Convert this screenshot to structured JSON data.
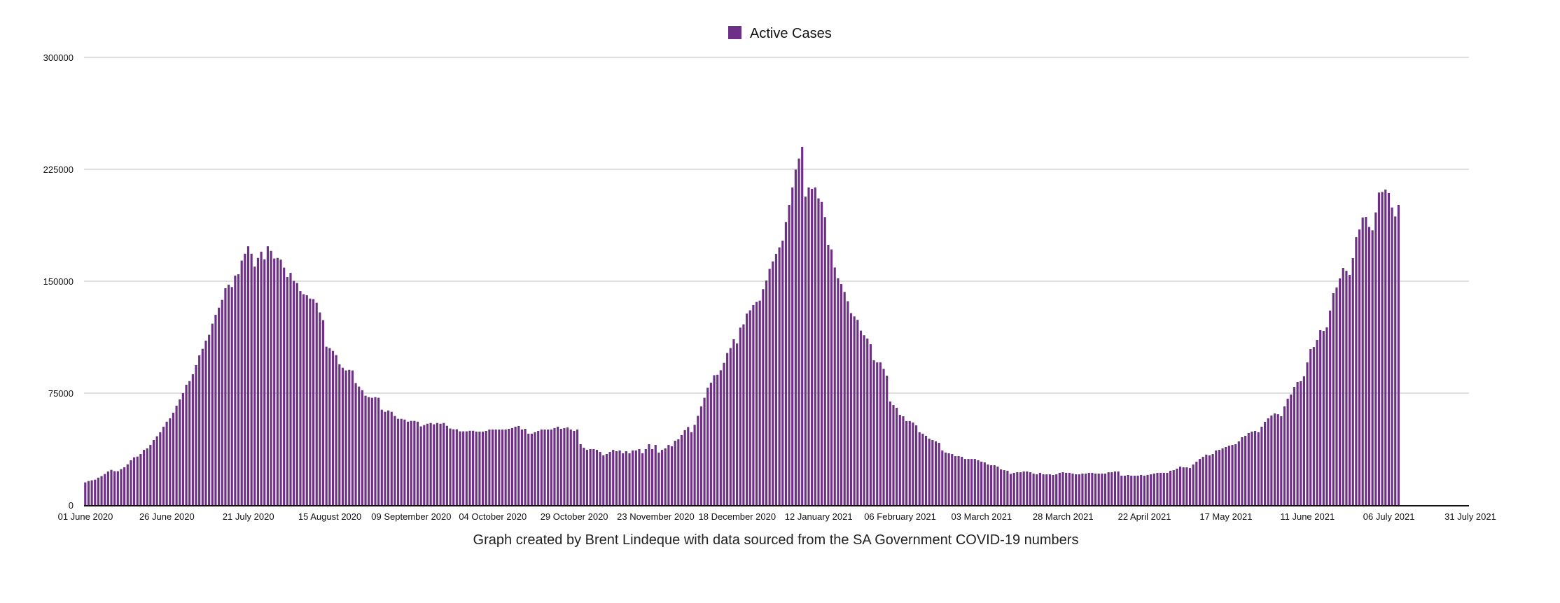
{
  "chart_data": {
    "type": "bar",
    "title": "",
    "xlabel": "",
    "ylabel": "",
    "caption": "Graph created by Brent Lindeque with data sourced from the SA Government COVID-19 numbers",
    "legend": {
      "position": "top-center",
      "entries": [
        {
          "label": "Active Cases",
          "color": "#6e2f87"
        }
      ]
    },
    "grid": true,
    "ylim": [
      0,
      300000
    ],
    "y_ticks": [
      "0",
      "75000",
      "150000",
      "225000",
      "300000"
    ],
    "y_tick_values": [
      0,
      75000,
      150000,
      225000,
      300000
    ],
    "x_start_date": "01 June 2020",
    "x_range_days": [
      0,
      425
    ],
    "x_ticks": [
      "01 June 2020",
      "26 June 2020",
      "21 July 2020",
      "15 August 2020",
      "09 September 2020",
      "04 October 2020",
      "29 October 2020",
      "23 November 2020",
      "18 December 2020",
      "12 January 2021",
      "06 February 2021",
      "03 March 2021",
      "28 March 2021",
      "22 April 2021",
      "17 May 2021",
      "11 June 2021",
      "06 July 2021",
      "31 July 2021"
    ],
    "x_tick_days": [
      0,
      25,
      50,
      75,
      100,
      125,
      150,
      175,
      200,
      225,
      250,
      275,
      300,
      325,
      350,
      375,
      400,
      425
    ],
    "series": [
      {
        "name": "Active Cases",
        "color": "#6e2f87",
        "values": [
          15200,
          16100,
          16600,
          17000,
          18400,
          19400,
          20800,
          22500,
          23600,
          22700,
          22700,
          24100,
          25300,
          27300,
          30000,
          32000,
          32500,
          34200,
          37000,
          38000,
          40300,
          43600,
          46100,
          48800,
          52500,
          55900,
          58100,
          61900,
          66600,
          70800,
          75000,
          80600,
          83100,
          87700,
          93800,
          100300,
          104700,
          110200,
          114100,
          121600,
          127500,
          132300,
          137500,
          145300,
          147700,
          146100,
          153800,
          154700,
          163800,
          168400,
          173400,
          168400,
          159800,
          165600,
          169800,
          164700,
          173400,
          170300,
          165200,
          165600,
          164500,
          159100,
          152800,
          155600,
          150200,
          148800,
          143400,
          141300,
          140600,
          138400,
          138000,
          135600,
          129100,
          123900,
          106100,
          105200,
          103300,
          100500,
          94400,
          92000,
          90200,
          90600,
          90200,
          81700,
          79400,
          77000,
          73300,
          72300,
          71900,
          72300,
          71900,
          63900,
          62500,
          63400,
          62500,
          59700,
          57800,
          57800,
          57300,
          55900,
          56400,
          56400,
          55900,
          52700,
          53600,
          54500,
          55000,
          54100,
          55000,
          54500,
          55000,
          53100,
          51300,
          50800,
          50800,
          49400,
          49400,
          49400,
          49800,
          49800,
          49200,
          49200,
          49200,
          49700,
          50600,
          50600,
          50600,
          50600,
          50600,
          50600,
          51100,
          51600,
          52500,
          53000,
          50600,
          51100,
          47800,
          47800,
          48800,
          49700,
          50600,
          50600,
          50600,
          50600,
          51600,
          52500,
          51100,
          51600,
          52000,
          50600,
          49700,
          50600,
          40800,
          38400,
          37000,
          37500,
          37500,
          37000,
          35600,
          33300,
          34200,
          35600,
          37000,
          36100,
          36600,
          34700,
          36100,
          34700,
          36600,
          36600,
          37500,
          34700,
          37500,
          40800,
          37500,
          40300,
          35200,
          37000,
          38000,
          40300,
          39400,
          43100,
          44100,
          46900,
          50200,
          52300,
          48800,
          53800,
          59800,
          66100,
          71900,
          78600,
          82000,
          87000,
          87300,
          90300,
          95300,
          101900,
          105200,
          111100,
          108300,
          118900,
          121100,
          128300,
          130500,
          134100,
          136100,
          137000,
          144700,
          150500,
          158300,
          163300,
          168300,
          172700,
          177200,
          189700,
          201100,
          212800,
          224800,
          232200,
          240000,
          206700,
          212800,
          211900,
          212800,
          205500,
          203100,
          193000,
          174400,
          171300,
          159200,
          152000,
          148100,
          142800,
          136600,
          128600,
          126400,
          124100,
          116900,
          113800,
          111600,
          107800,
          97000,
          95600,
          95600,
          91300,
          86700,
          69400,
          67000,
          65200,
          60500,
          59500,
          56300,
          56300,
          55300,
          53400,
          48800,
          47800,
          46400,
          44500,
          43600,
          42700,
          41700,
          36600,
          35200,
          34700,
          34200,
          32800,
          32800,
          32300,
          30900,
          30900,
          30900,
          30900,
          30000,
          29100,
          28600,
          27200,
          26700,
          26700,
          25800,
          23900,
          23400,
          23000,
          20900,
          21600,
          22000,
          22000,
          22500,
          22500,
          22000,
          21100,
          20600,
          21600,
          20600,
          20600,
          20600,
          20200,
          20600,
          21600,
          22000,
          21600,
          21600,
          21100,
          20600,
          20600,
          21100,
          21100,
          21600,
          21600,
          21100,
          21100,
          21100,
          21100,
          22000,
          22000,
          22500,
          22500,
          19700,
          19700,
          20200,
          19700,
          19700,
          19700,
          20200,
          19700,
          20200,
          20600,
          21100,
          21600,
          21600,
          21600,
          21600,
          23000,
          23400,
          24400,
          25800,
          25300,
          25300,
          24800,
          27200,
          29100,
          30900,
          32300,
          33800,
          33300,
          34200,
          36600,
          37000,
          38000,
          38900,
          39800,
          40300,
          40800,
          42700,
          45500,
          46400,
          48300,
          49200,
          49700,
          48800,
          52500,
          55800,
          58100,
          60000,
          61400,
          60900,
          59500,
          66100,
          71300,
          74100,
          79200,
          82500,
          83000,
          86300,
          95600,
          104500,
          105900,
          110600,
          117200,
          116700,
          119100,
          130300,
          142000,
          145800,
          151900,
          158900,
          157000,
          154200,
          165500,
          179500,
          184700,
          192700,
          193100,
          186400,
          184100,
          196100,
          209400,
          209800,
          211400,
          209100,
          199400,
          193400,
          201100
        ]
      }
    ]
  }
}
